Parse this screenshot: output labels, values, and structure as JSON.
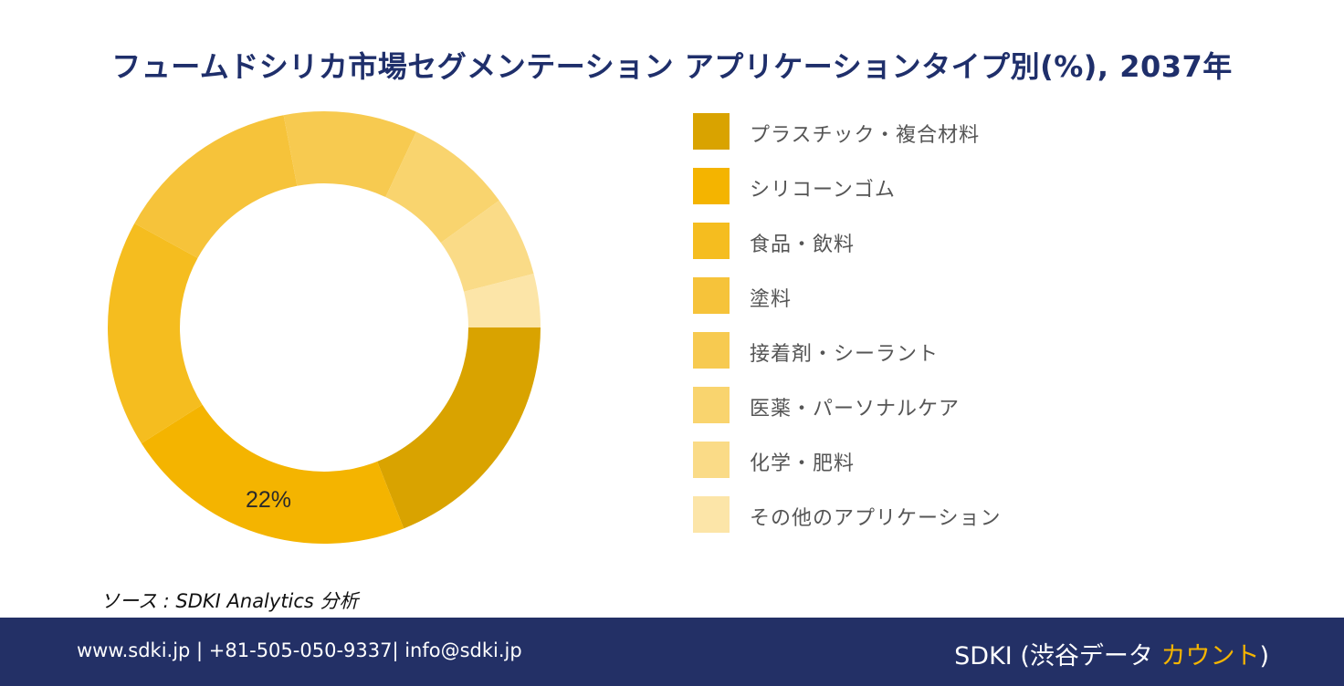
{
  "chart_data": {
    "type": "pie",
    "title": "フュームドシリカ市場セグメンテーション アプリケーションタイプ別(%), 2037年",
    "categories": [
      "プラスチック・複合材料",
      "シリコーンゴム",
      "食品・飲料",
      "塗料",
      "接着剤・シーラント",
      "医薬・パーソナルケア",
      "化学・肥料",
      "その他のアプリケーション"
    ],
    "values": [
      19,
      22,
      17,
      14,
      10,
      8,
      6,
      4
    ],
    "colors": [
      "#d9a300",
      "#f4b400",
      "#f5bd1f",
      "#f6c33a",
      "#f7ca50",
      "#f9d46e",
      "#fadb87",
      "#fce5a8"
    ],
    "data_labels": [
      "",
      "22%",
      "",
      "",
      "",
      "",
      "",
      ""
    ],
    "donut": true,
    "legend_position": "right"
  },
  "source": "ソース : SDKI Analytics 分析",
  "footer": {
    "contact": "www.sdki.jp | +81-505-050-9337| info@sdki.jp",
    "brand_prefix": "SDKI (渋谷データ ",
    "brand_accent": "カウント",
    "brand_suffix": ")"
  }
}
